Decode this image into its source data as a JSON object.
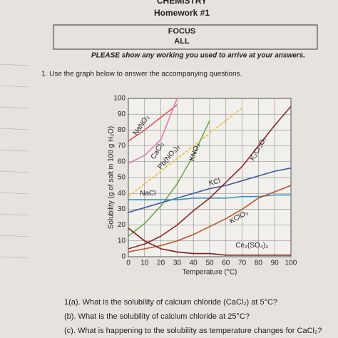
{
  "header": {
    "title": "CHEMISTRY",
    "subtitle": "Homework #1",
    "box_title": "FOCUS",
    "box_subtitle": "ALL"
  },
  "instruction": "PLEASE show any working you used to arrive at your answers.",
  "question_intro": "1. Use the graph below to answer the accompanying questions.",
  "questions": [
    "1(a). What is the solubility of calcium chloride (CaCl₂) at 5°C?",
    "(b). What is the solubility of calcium chloride at 25°C?",
    "(c). What is happening to the solubility as temperature changes for CaCl₂?"
  ],
  "chart_data": {
    "type": "line",
    "x_label": "Temperature (°C)",
    "y_label": "Solubility (g of salt in 100 g H₂O)",
    "x": [
      0,
      10,
      20,
      30,
      40,
      50,
      60,
      70,
      80,
      90,
      100
    ],
    "xlim": [
      0,
      100
    ],
    "ylim": [
      0,
      100
    ],
    "xticks": [
      0,
      10,
      20,
      30,
      40,
      50,
      60,
      70,
      80,
      90,
      100
    ],
    "yticks": [
      0,
      10,
      20,
      30,
      40,
      50,
      60,
      70,
      80,
      90,
      100
    ],
    "grid": true,
    "series": [
      {
        "name": "NaNO₃",
        "color": "#d9534f",
        "values": [
          73,
          80,
          88,
          96,
          null,
          null,
          null,
          null,
          null,
          null,
          null
        ]
      },
      {
        "name": "CaCl₂",
        "color": "#e07bb0",
        "values": [
          59,
          64,
          74,
          100,
          null,
          null,
          null,
          null,
          null,
          null,
          null
        ]
      },
      {
        "name": "Pb(NO₃)₂",
        "color": "#e3c23a",
        "dash": true,
        "values": [
          38,
          46,
          54,
          62,
          70,
          78,
          86,
          94,
          null,
          null,
          null
        ]
      },
      {
        "name": "KNO₃",
        "color": "#6aa84f",
        "values": [
          13,
          21,
          32,
          46,
          64,
          86,
          null,
          null,
          null,
          null,
          null
        ]
      },
      {
        "name": "KCl",
        "color": "#3d5a9e",
        "values": [
          28,
          31,
          34,
          37,
          40,
          43,
          45,
          48,
          51,
          54,
          56
        ]
      },
      {
        "name": "NaCl",
        "color": "#3a8fc2",
        "values": [
          36,
          36,
          36,
          36,
          37,
          37,
          37,
          38,
          38,
          39,
          39
        ]
      },
      {
        "name": "K₂Cr₂O₇",
        "color": "#8b2a2a",
        "values": [
          5,
          8,
          13,
          20,
          29,
          37,
          47,
          57,
          70,
          83,
          95
        ]
      },
      {
        "name": "KClO₃",
        "color": "#b8572a",
        "values": [
          3,
          5,
          7,
          10,
          14,
          19,
          24,
          30,
          37,
          41,
          45
        ]
      },
      {
        "name": "Ce₂(SO₄)₃",
        "color": "#7a1f1f",
        "values": [
          18,
          10,
          5,
          3,
          2,
          2,
          1,
          1,
          1,
          1,
          1
        ]
      }
    ]
  }
}
